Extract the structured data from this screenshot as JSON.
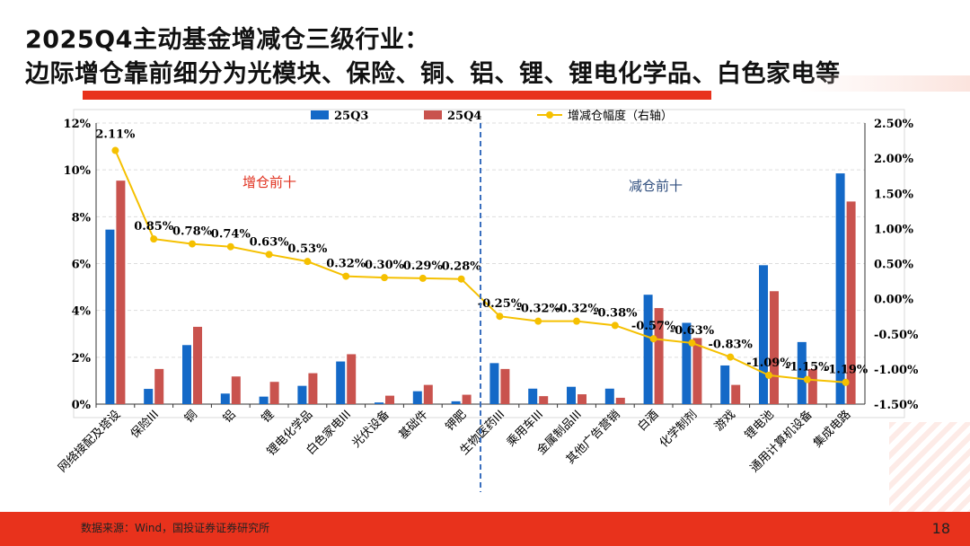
{
  "header": {
    "title_line1": "2025Q4主动基金增减仓三级行业：",
    "title_line2": "边际增仓靠前细分为光模块、保险、铜、铝、锂、锂电化学品、白色家电等"
  },
  "footer": {
    "source": "数据来源：Wind，国投证券证券研究所",
    "page_number": "18"
  },
  "colors": {
    "accent_red": "#e8321c",
    "series_25Q3": "#1469c7",
    "series_25Q4": "#c9534e",
    "line": "#f5c000",
    "divider": "#3a6fbf",
    "annot_increase": "#e0301e",
    "annot_decrease": "#2f4e7e"
  },
  "chart_data": {
    "type": "bar",
    "categories": [
      "网络接配及塔设",
      "保险III",
      "铜",
      "铝",
      "锂",
      "锂电化学品",
      "白色家电III",
      "光伏设备",
      "基础件",
      "钾肥",
      "生物医药III",
      "乘用车III",
      "金属制品III",
      "其他广告营销",
      "白酒",
      "化学制剂",
      "游戏",
      "锂电池",
      "通用计算机设备",
      "集成电路"
    ],
    "series": [
      {
        "name": "25Q3",
        "axis": "left",
        "values": [
          7.45,
          0.65,
          2.52,
          0.45,
          0.32,
          0.78,
          1.82,
          0.07,
          0.55,
          0.12,
          1.75,
          0.66,
          0.74,
          0.66,
          4.67,
          3.47,
          1.65,
          5.93,
          2.65,
          9.85
        ]
      },
      {
        "name": "25Q4",
        "axis": "left",
        "values": [
          9.54,
          1.5,
          3.3,
          1.18,
          0.95,
          1.32,
          2.13,
          0.36,
          0.82,
          0.4,
          1.5,
          0.34,
          0.42,
          0.27,
          4.1,
          2.82,
          0.82,
          4.82,
          1.5,
          8.65
        ]
      },
      {
        "name": "增减仓幅度（右轴）",
        "axis": "right",
        "type": "line",
        "values": [
          2.11,
          0.85,
          0.78,
          0.74,
          0.63,
          0.53,
          0.32,
          0.3,
          0.29,
          0.28,
          -0.25,
          -0.32,
          -0.32,
          -0.38,
          -0.57,
          -0.63,
          -0.83,
          -1.09,
          -1.15,
          -1.19
        ]
      }
    ],
    "line_labels": [
      "2.11%",
      "0.85%",
      "0.78%",
      "0.74%",
      "0.63%",
      "0.53%",
      "0.32%",
      "0.30%",
      "0.29%",
      "0.28%",
      "-0.25%",
      "-0.32%",
      "-0.32%",
      "-0.38%",
      "-0.57%",
      "-0.63%",
      "-0.83%",
      "-1.09%",
      "-1.15%",
      "-1.19%"
    ],
    "yleft_ticks": [
      "0%",
      "2%",
      "4%",
      "6%",
      "8%",
      "10%",
      "12%"
    ],
    "yright_ticks": [
      "-1.50%",
      "-1.00%",
      "-0.50%",
      "0.00%",
      "0.50%",
      "1.00%",
      "1.50%",
      "2.00%",
      "2.50%"
    ],
    "ylim_left": [
      0,
      12
    ],
    "ylim_right": [
      -1.5,
      2.5
    ],
    "annotations": {
      "increase": "增仓前十",
      "decrease": "减仓前十"
    },
    "legend_position": "top",
    "grid": true
  }
}
